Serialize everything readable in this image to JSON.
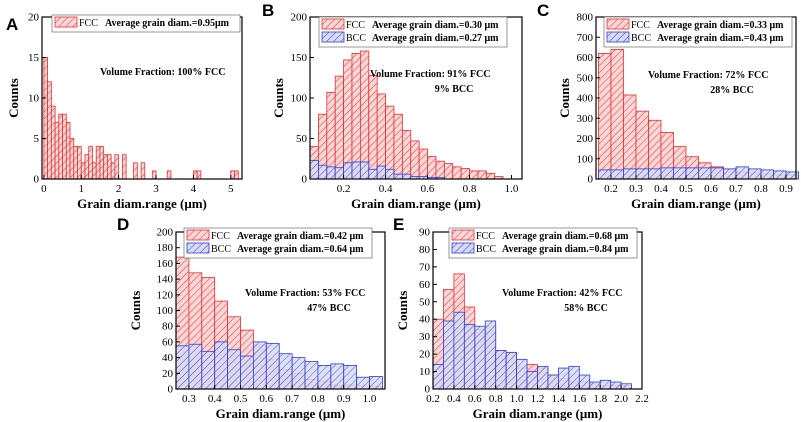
{
  "figure": {
    "colors": {
      "fcc_stroke": "#e03030",
      "fcc_fill": "#fbd6d6",
      "bcc_stroke": "#2f3fd0",
      "bcc_fill": "#d8dbf5",
      "axis": "#000000"
    }
  },
  "chart_data": [
    {
      "panel": "A",
      "type": "bar",
      "xlabel": "Grain diam.range (μm)",
      "ylabel": "Counts",
      "xlim": [
        -0.05,
        5.3
      ],
      "ylim": [
        0,
        20
      ],
      "xticks": [
        0,
        1,
        2,
        3,
        4,
        5
      ],
      "yticks": [
        0,
        5,
        10,
        15,
        20
      ],
      "bin_width": 0.1,
      "legend": [
        {
          "name": "FCC",
          "text": "Average grain diam.=0.95μm"
        }
      ],
      "annotation": [
        "Volume Fraction: 100% FCC"
      ],
      "series": [
        {
          "name": "FCC",
          "bins": [
            [
              0.05,
              15
            ],
            [
              0.15,
              12
            ],
            [
              0.25,
              9
            ],
            [
              0.35,
              7
            ],
            [
              0.45,
              8
            ],
            [
              0.55,
              8
            ],
            [
              0.65,
              7
            ],
            [
              0.75,
              5
            ],
            [
              0.85,
              4
            ],
            [
              0.95,
              4
            ],
            [
              1.05,
              2
            ],
            [
              1.15,
              3
            ],
            [
              1.25,
              4
            ],
            [
              1.35,
              2
            ],
            [
              1.45,
              4
            ],
            [
              1.55,
              4
            ],
            [
              1.65,
              3
            ],
            [
              1.75,
              3
            ],
            [
              1.85,
              2
            ],
            [
              1.95,
              3
            ],
            [
              2.15,
              3
            ],
            [
              2.45,
              2
            ],
            [
              2.65,
              2
            ],
            [
              2.95,
              1
            ],
            [
              3.35,
              1
            ],
            [
              4.05,
              1
            ],
            [
              4.15,
              1
            ],
            [
              5.05,
              1
            ],
            [
              5.15,
              1
            ]
          ]
        }
      ]
    },
    {
      "panel": "B",
      "type": "bar",
      "xlabel": "Grain diam.range (μm)",
      "ylabel": "Counts",
      "xlim": [
        0.04,
        1.05
      ],
      "ylim": [
        0,
        200
      ],
      "xticks": [
        0.2,
        0.4,
        0.6,
        0.8,
        1.0
      ],
      "xtick_labels": [
        "0.2",
        "0.4",
        "0.6",
        "0.8",
        "1.0"
      ],
      "yticks": [
        0,
        50,
        100,
        150,
        200
      ],
      "bin_width": 0.04,
      "legend": [
        {
          "name": "FCC",
          "text": "Average grain diam.=0.30 μm"
        },
        {
          "name": "BCC",
          "text": "Average grain diam.=0.27 μm"
        }
      ],
      "annotation": [
        "Volume Fraction: 91% FCC",
        "9% BCC"
      ],
      "series": [
        {
          "name": "FCC",
          "bins": [
            [
              0.06,
              40
            ],
            [
              0.1,
              80
            ],
            [
              0.14,
              107
            ],
            [
              0.18,
              127
            ],
            [
              0.22,
              147
            ],
            [
              0.26,
              155
            ],
            [
              0.3,
              158
            ],
            [
              0.34,
              128
            ],
            [
              0.38,
              105
            ],
            [
              0.42,
              90
            ],
            [
              0.46,
              80
            ],
            [
              0.5,
              60
            ],
            [
              0.54,
              47
            ],
            [
              0.58,
              37
            ],
            [
              0.62,
              28
            ],
            [
              0.66,
              22
            ],
            [
              0.7,
              19
            ],
            [
              0.74,
              15
            ],
            [
              0.78,
              13
            ],
            [
              0.82,
              10
            ],
            [
              0.86,
              10
            ],
            [
              0.9,
              7
            ],
            [
              0.94,
              3
            ]
          ]
        },
        {
          "name": "BCC",
          "bins": [
            [
              0.06,
              23
            ],
            [
              0.1,
              17
            ],
            [
              0.14,
              15
            ],
            [
              0.18,
              14
            ],
            [
              0.22,
              20
            ],
            [
              0.26,
              21
            ],
            [
              0.3,
              21
            ],
            [
              0.34,
              12
            ],
            [
              0.38,
              16
            ],
            [
              0.42,
              12
            ],
            [
              0.46,
              6
            ],
            [
              0.5,
              6
            ],
            [
              0.54,
              3
            ],
            [
              0.58,
              3
            ],
            [
              0.62,
              2
            ],
            [
              0.66,
              2
            ]
          ]
        }
      ]
    },
    {
      "panel": "C",
      "type": "bar",
      "xlabel": "Grain diam.range (μm)",
      "ylabel": "Counts",
      "xlim": [
        0.14,
        0.94
      ],
      "ylim": [
        0,
        800
      ],
      "xticks": [
        0.2,
        0.3,
        0.4,
        0.5,
        0.6,
        0.7,
        0.8,
        0.9
      ],
      "xtick_labels": [
        "0.2",
        "0.3",
        "0.4",
        "0.5",
        "0.6",
        "0.7",
        "0.8",
        "0.9"
      ],
      "yticks": [
        0,
        100,
        200,
        300,
        400,
        500,
        600,
        700,
        800
      ],
      "bin_width": 0.05,
      "legend": [
        {
          "name": "FCC",
          "text": "Average grain diam.=0.33 μm"
        },
        {
          "name": "BCC",
          "text": "Average grain diam.=0.43 μm"
        }
      ],
      "annotation": [
        "Volume Fraction: 72% FCC",
        "28% BCC"
      ],
      "series": [
        {
          "name": "FCC",
          "bins": [
            [
              0.175,
              620
            ],
            [
              0.225,
              640
            ],
            [
              0.275,
              415
            ],
            [
              0.325,
              335
            ],
            [
              0.375,
              290
            ],
            [
              0.425,
              230
            ],
            [
              0.475,
              160
            ],
            [
              0.525,
              110
            ],
            [
              0.575,
              80
            ],
            [
              0.625,
              60
            ],
            [
              0.675,
              50
            ],
            [
              0.725,
              35
            ],
            [
              0.775,
              30
            ],
            [
              0.825,
              25
            ],
            [
              0.875,
              20
            ],
            [
              0.925,
              20
            ]
          ]
        },
        {
          "name": "BCC",
          "bins": [
            [
              0.175,
              45
            ],
            [
              0.225,
              45
            ],
            [
              0.275,
              50
            ],
            [
              0.325,
              50
            ],
            [
              0.375,
              50
            ],
            [
              0.425,
              55
            ],
            [
              0.475,
              55
            ],
            [
              0.525,
              55
            ],
            [
              0.575,
              55
            ],
            [
              0.625,
              55
            ],
            [
              0.675,
              50
            ],
            [
              0.725,
              60
            ],
            [
              0.775,
              50
            ],
            [
              0.825,
              45
            ],
            [
              0.875,
              40
            ],
            [
              0.925,
              35
            ]
          ]
        }
      ]
    },
    {
      "panel": "D",
      "type": "bar",
      "xlabel": "Grain diam.range (μm)",
      "ylabel": "Counts",
      "xlim": [
        0.25,
        1.06
      ],
      "ylim": [
        0,
        200
      ],
      "xticks": [
        0.3,
        0.4,
        0.5,
        0.6,
        0.7,
        0.8,
        0.9,
        1.0
      ],
      "xtick_labels": [
        "0.3",
        "0.4",
        "0.5",
        "0.6",
        "0.7",
        "0.8",
        "0.9",
        "1.0"
      ],
      "yticks": [
        0,
        20,
        40,
        60,
        80,
        100,
        120,
        140,
        160,
        180,
        200
      ],
      "bin_width": 0.05,
      "legend": [
        {
          "name": "FCC",
          "text": "Average grain diam.=0.42 μm"
        },
        {
          "name": "BCC",
          "text": "Average grain diam.=0.64 μm"
        }
      ],
      "annotation": [
        "Volume Fraction: 53% FCC",
        "47% BCC"
      ],
      "series": [
        {
          "name": "FCC",
          "bins": [
            [
              0.275,
              168
            ],
            [
              0.325,
              148
            ],
            [
              0.375,
              142
            ],
            [
              0.425,
              112
            ],
            [
              0.475,
              92
            ],
            [
              0.525,
              75
            ],
            [
              0.575,
              56
            ],
            [
              0.625,
              38
            ],
            [
              0.675,
              25
            ],
            [
              0.725,
              20
            ],
            [
              0.775,
              12
            ],
            [
              0.825,
              10
            ],
            [
              0.875,
              5
            ],
            [
              0.925,
              5
            ],
            [
              0.975,
              4
            ],
            [
              1.025,
              3
            ]
          ]
        },
        {
          "name": "BCC",
          "bins": [
            [
              0.275,
              55
            ],
            [
              0.325,
              57
            ],
            [
              0.375,
              48
            ],
            [
              0.425,
              60
            ],
            [
              0.475,
              50
            ],
            [
              0.525,
              42
            ],
            [
              0.575,
              60
            ],
            [
              0.625,
              58
            ],
            [
              0.675,
              45
            ],
            [
              0.725,
              40
            ],
            [
              0.775,
              35
            ],
            [
              0.825,
              30
            ],
            [
              0.875,
              32
            ],
            [
              0.925,
              30
            ],
            [
              0.975,
              15
            ],
            [
              1.025,
              16
            ]
          ]
        }
      ]
    },
    {
      "panel": "E",
      "type": "bar",
      "xlabel": "Grain diam.range (μm)",
      "ylabel": "Counts",
      "xlim": [
        0.2,
        2.2
      ],
      "ylim": [
        0,
        90
      ],
      "xticks": [
        0.2,
        0.4,
        0.6,
        0.8,
        1.0,
        1.2,
        1.4,
        1.6,
        1.8,
        2.0,
        2.2
      ],
      "xtick_labels": [
        "0.2",
        "0.4",
        "0.6",
        "0.8",
        "1.0",
        "1.2",
        "1.4",
        "1.6",
        "1.8",
        "2.0",
        "2.2"
      ],
      "yticks": [
        0,
        10,
        20,
        30,
        40,
        50,
        60,
        70,
        80,
        90
      ],
      "bin_width": 0.1,
      "legend": [
        {
          "name": "FCC",
          "text": "Average grain diam.=0.68 μm"
        },
        {
          "name": "BCC",
          "text": "Average grain diam.=0.84 μm"
        }
      ],
      "annotation": [
        "Volume Fraction: 42% FCC",
        "58% BCC"
      ],
      "series": [
        {
          "name": "FCC",
          "bins": [
            [
              0.25,
              40
            ],
            [
              0.35,
              57
            ],
            [
              0.45,
              66
            ],
            [
              0.55,
              47
            ],
            [
              0.65,
              34
            ],
            [
              0.75,
              36
            ],
            [
              0.85,
              22
            ],
            [
              0.95,
              21
            ],
            [
              1.05,
              12
            ],
            [
              1.15,
              14
            ],
            [
              1.25,
              12
            ],
            [
              1.35,
              8
            ],
            [
              1.45,
              6
            ],
            [
              1.55,
              4
            ],
            [
              1.65,
              4
            ],
            [
              1.75,
              3
            ],
            [
              1.85,
              2
            ],
            [
              1.95,
              2
            ],
            [
              2.05,
              2
            ]
          ]
        },
        {
          "name": "BCC",
          "bins": [
            [
              0.25,
              14
            ],
            [
              0.35,
              39
            ],
            [
              0.45,
              44
            ],
            [
              0.55,
              37
            ],
            [
              0.65,
              36
            ],
            [
              0.75,
              39
            ],
            [
              0.85,
              22
            ],
            [
              0.95,
              21
            ],
            [
              1.05,
              17
            ],
            [
              1.15,
              10
            ],
            [
              1.25,
              13
            ],
            [
              1.35,
              8
            ],
            [
              1.45,
              12
            ],
            [
              1.55,
              13
            ],
            [
              1.65,
              8
            ],
            [
              1.75,
              4
            ],
            [
              1.85,
              5
            ],
            [
              1.95,
              4
            ],
            [
              2.05,
              3
            ]
          ]
        }
      ]
    }
  ]
}
